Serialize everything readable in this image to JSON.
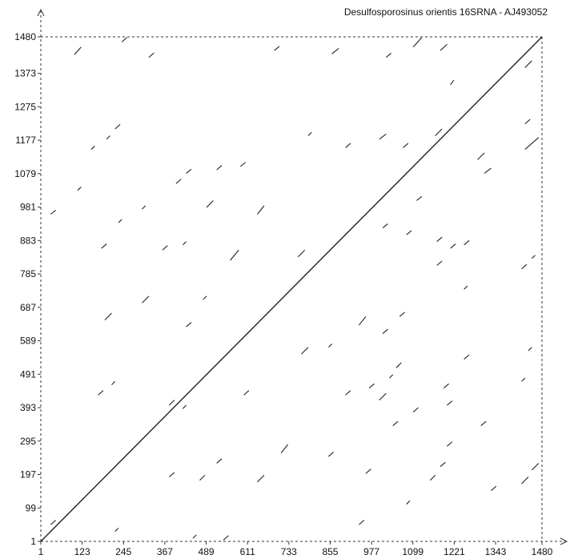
{
  "chart_data": {
    "type": "scatter",
    "title": "Desulfosporosinus orientis 16SRNA - AJ493052",
    "xlabel": "",
    "ylabel": "",
    "xlim": [
      1,
      1480
    ],
    "ylim": [
      1,
      1480
    ],
    "x_ticks": [
      "1",
      "123",
      "245",
      "367",
      "489",
      "611",
      "733",
      "855",
      "977",
      "1099",
      "1221",
      "1343",
      "1480"
    ],
    "y_ticks": [
      "1",
      "99",
      "197",
      "295",
      "393",
      "491",
      "589",
      "687",
      "785",
      "883",
      "981",
      "1079",
      "1177",
      "1275",
      "1373",
      "1480"
    ],
    "grid": false,
    "frame": "dashed",
    "colors": {
      "line": "#222222",
      "axis": "#333333",
      "background": "#ffffff"
    },
    "series": [
      {
        "role": "main-diagonal",
        "segments": [
          [
            1,
            1,
            1480,
            1480
          ]
        ]
      },
      {
        "role": "off-diagonal-matches",
        "segments": [
          [
            100,
            1428,
            120,
            1450
          ],
          [
            240,
            1465,
            255,
            1478
          ],
          [
            320,
            1420,
            335,
            1433
          ],
          [
            690,
            1440,
            705,
            1452
          ],
          [
            860,
            1430,
            880,
            1446
          ],
          [
            1020,
            1420,
            1035,
            1432
          ],
          [
            1100,
            1450,
            1125,
            1478
          ],
          [
            1180,
            1440,
            1200,
            1458
          ],
          [
            1210,
            1340,
            1220,
            1353
          ],
          [
            1070,
            1155,
            1085,
            1168
          ],
          [
            1110,
            1000,
            1125,
            1012
          ],
          [
            1290,
            1120,
            1310,
            1140
          ],
          [
            1310,
            1080,
            1330,
            1095
          ],
          [
            1430,
            1150,
            1470,
            1185
          ],
          [
            1430,
            1225,
            1445,
            1238
          ],
          [
            1430,
            1390,
            1450,
            1410
          ],
          [
            1000,
            1180,
            1020,
            1195
          ],
          [
            790,
            1190,
            800,
            1200
          ],
          [
            900,
            1155,
            915,
            1168
          ],
          [
            1165,
            1190,
            1185,
            1210
          ],
          [
            400,
            1050,
            415,
            1063
          ],
          [
            150,
            1150,
            160,
            1160
          ],
          [
            195,
            1180,
            205,
            1190
          ],
          [
            220,
            1210,
            235,
            1223
          ],
          [
            430,
            1080,
            445,
            1092
          ],
          [
            590,
            1100,
            605,
            1112
          ],
          [
            30,
            960,
            45,
            972
          ],
          [
            110,
            1030,
            120,
            1040
          ],
          [
            300,
            975,
            310,
            985
          ],
          [
            490,
            980,
            510,
            1000
          ],
          [
            640,
            960,
            660,
            985
          ],
          [
            520,
            1090,
            535,
            1103
          ],
          [
            230,
            935,
            240,
            945
          ],
          [
            180,
            860,
            195,
            873
          ],
          [
            360,
            855,
            375,
            868
          ],
          [
            420,
            870,
            430,
            880
          ],
          [
            560,
            825,
            585,
            855
          ],
          [
            760,
            835,
            780,
            855
          ],
          [
            1010,
            920,
            1025,
            932
          ],
          [
            1080,
            900,
            1095,
            912
          ],
          [
            1170,
            880,
            1185,
            893
          ],
          [
            1210,
            860,
            1225,
            873
          ],
          [
            1250,
            870,
            1265,
            883
          ],
          [
            1170,
            810,
            1185,
            823
          ],
          [
            1250,
            740,
            1260,
            750
          ],
          [
            1420,
            800,
            1435,
            813
          ],
          [
            1450,
            830,
            1460,
            840
          ],
          [
            190,
            650,
            210,
            670
          ],
          [
            300,
            700,
            320,
            720
          ],
          [
            430,
            630,
            445,
            643
          ],
          [
            480,
            710,
            490,
            720
          ],
          [
            940,
            635,
            960,
            660
          ],
          [
            1010,
            610,
            1025,
            623
          ],
          [
            1060,
            660,
            1075,
            673
          ],
          [
            770,
            550,
            790,
            570
          ],
          [
            850,
            570,
            860,
            580
          ],
          [
            1190,
            450,
            1205,
            463
          ],
          [
            1250,
            535,
            1265,
            548
          ],
          [
            1030,
            480,
            1040,
            490
          ],
          [
            1050,
            510,
            1065,
            525
          ],
          [
            1440,
            560,
            1450,
            570
          ],
          [
            1420,
            470,
            1430,
            480
          ],
          [
            170,
            430,
            185,
            443
          ],
          [
            210,
            460,
            220,
            470
          ],
          [
            380,
            400,
            395,
            415
          ],
          [
            420,
            390,
            430,
            400
          ],
          [
            600,
            430,
            615,
            443
          ],
          [
            900,
            430,
            915,
            443
          ],
          [
            1000,
            415,
            1020,
            435
          ],
          [
            970,
            450,
            985,
            463
          ],
          [
            1100,
            380,
            1115,
            393
          ],
          [
            1040,
            340,
            1055,
            353
          ],
          [
            1200,
            400,
            1215,
            413
          ],
          [
            1300,
            340,
            1315,
            353
          ],
          [
            710,
            260,
            730,
            285
          ],
          [
            640,
            175,
            660,
            195
          ],
          [
            520,
            230,
            535,
            243
          ],
          [
            380,
            190,
            395,
            203
          ],
          [
            470,
            180,
            485,
            195
          ],
          [
            850,
            250,
            865,
            263
          ],
          [
            960,
            200,
            975,
            213
          ],
          [
            1150,
            180,
            1165,
            195
          ],
          [
            1180,
            220,
            1195,
            233
          ],
          [
            1200,
            280,
            1215,
            293
          ],
          [
            1330,
            150,
            1345,
            163
          ],
          [
            1420,
            170,
            1440,
            190
          ],
          [
            1450,
            210,
            1470,
            230
          ],
          [
            1080,
            110,
            1090,
            120
          ],
          [
            940,
            50,
            955,
            63
          ],
          [
            30,
            50,
            45,
            63
          ],
          [
            220,
            30,
            230,
            40
          ],
          [
            450,
            10,
            460,
            20
          ],
          [
            540,
            5,
            555,
            18
          ]
        ]
      }
    ]
  }
}
